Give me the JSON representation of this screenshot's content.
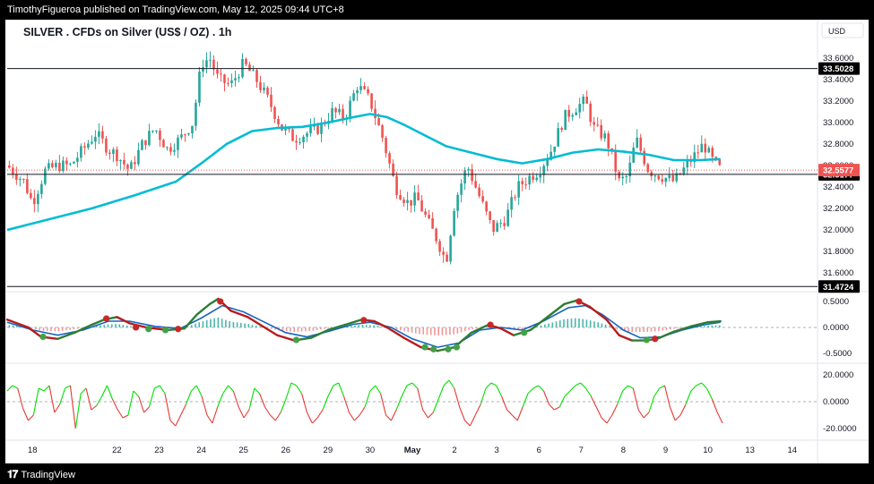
{
  "header": {
    "publish_line": "TimothyFigueroa published on TradingView.com, May 12, 2025 09:44 UTC+8"
  },
  "footer": {
    "brand": "TradingView"
  },
  "colors": {
    "up_candle": "#26a69a",
    "down_candle": "#ef5350",
    "ma_line": "#00bcd4",
    "osc_fast": "#2e7d32",
    "osc_fast_down": "#b71c1c",
    "osc_slow": "#1565c0",
    "rsi_up": "#00e000",
    "rsi_down": "#e53935",
    "price_tag": "#ef5350",
    "hline_tag": "#000000"
  },
  "chart_data": [
    {
      "type": "candlestick",
      "title": "SILVER . CFDs on Silver (US$ / OZ) . 1h",
      "currency": "USD",
      "ylim": [
        31.45,
        33.75
      ],
      "y_ticks": [
        "33.6000",
        "33.4000",
        "33.2000",
        "33.0000",
        "32.8000",
        "32.6000",
        "32.4000",
        "32.2000",
        "32.0000",
        "31.8000",
        "31.6000"
      ],
      "x_ticks": [
        {
          "label": "18",
          "t": 0.6
        },
        {
          "label": "22",
          "t": 2.6
        },
        {
          "label": "23",
          "t": 3.6
        },
        {
          "label": "24",
          "t": 4.6
        },
        {
          "label": "25",
          "t": 5.6
        },
        {
          "label": "26",
          "t": 6.6
        },
        {
          "label": "29",
          "t": 7.6
        },
        {
          "label": "30",
          "t": 8.6
        },
        {
          "label": "May",
          "t": 9.6,
          "bold": true
        },
        {
          "label": "2",
          "t": 10.6
        },
        {
          "label": "3",
          "t": 11.6
        },
        {
          "label": "6",
          "t": 12.6
        },
        {
          "label": "7",
          "t": 13.6
        },
        {
          "label": "8",
          "t": 14.6
        },
        {
          "label": "9",
          "t": 15.6
        },
        {
          "label": "10",
          "t": 16.6
        },
        {
          "label": "13",
          "t": 17.6
        },
        {
          "label": "14",
          "t": 18.6
        }
      ],
      "horizontal_lines": [
        {
          "value": 33.5028,
          "label": "33.5028"
        },
        {
          "value": 32.5177,
          "label": "32.5177"
        },
        {
          "value": 31.4724,
          "label": "31.4724"
        }
      ],
      "last_price": {
        "value": 32.5577,
        "label": "32.5577"
      },
      "price_path": [
        [
          0.0,
          32.6
        ],
        [
          0.4,
          32.45
        ],
        [
          0.6,
          32.25
        ],
        [
          0.9,
          32.55
        ],
        [
          1.2,
          32.6
        ],
        [
          1.5,
          32.6
        ],
        [
          1.8,
          32.75
        ],
        [
          2.1,
          32.9
        ],
        [
          2.4,
          32.75
        ],
        [
          2.6,
          32.7
        ],
        [
          2.9,
          32.55
        ],
        [
          3.2,
          32.8
        ],
        [
          3.5,
          32.95
        ],
        [
          3.8,
          32.75
        ],
        [
          4.1,
          32.85
        ],
        [
          4.4,
          33.0
        ],
        [
          4.6,
          33.55
        ],
        [
          4.8,
          33.6
        ],
        [
          5.0,
          33.4
        ],
        [
          5.3,
          33.35
        ],
        [
          5.6,
          33.55
        ],
        [
          5.9,
          33.4
        ],
        [
          6.2,
          33.2
        ],
        [
          6.5,
          32.95
        ],
        [
          6.8,
          32.85
        ],
        [
          7.1,
          32.9
        ],
        [
          7.4,
          32.95
        ],
        [
          7.7,
          33.1
        ],
        [
          8.0,
          33.05
        ],
        [
          8.3,
          33.35
        ],
        [
          8.6,
          33.2
        ],
        [
          8.9,
          32.85
        ],
        [
          9.2,
          32.4
        ],
        [
          9.5,
          32.25
        ],
        [
          9.7,
          32.3
        ],
        [
          10.0,
          32.05
        ],
        [
          10.2,
          31.9
        ],
        [
          10.4,
          31.7
        ],
        [
          10.6,
          32.25
        ],
        [
          10.9,
          32.6
        ],
        [
          11.2,
          32.3
        ],
        [
          11.5,
          32.0
        ],
        [
          11.8,
          32.1
        ],
        [
          12.1,
          32.4
        ],
        [
          12.4,
          32.5
        ],
        [
          12.6,
          32.55
        ],
        [
          12.9,
          32.75
        ],
        [
          13.2,
          33.05
        ],
        [
          13.5,
          33.15
        ],
        [
          13.7,
          33.2
        ],
        [
          13.9,
          32.95
        ],
        [
          14.2,
          32.85
        ],
        [
          14.5,
          32.45
        ],
        [
          14.7,
          32.5
        ],
        [
          14.9,
          32.85
        ],
        [
          15.2,
          32.55
        ],
        [
          15.5,
          32.5
        ],
        [
          15.8,
          32.45
        ],
        [
          16.1,
          32.6
        ],
        [
          16.3,
          32.7
        ],
        [
          16.5,
          32.8
        ],
        [
          16.7,
          32.65
        ],
        [
          16.9,
          32.56
        ]
      ],
      "moving_average_path": [
        [
          0.0,
          32.0
        ],
        [
          1.0,
          32.1
        ],
        [
          2.0,
          32.2
        ],
        [
          3.0,
          32.32
        ],
        [
          4.0,
          32.45
        ],
        [
          4.6,
          32.62
        ],
        [
          5.2,
          32.8
        ],
        [
          5.8,
          32.92
        ],
        [
          6.4,
          32.95
        ],
        [
          7.0,
          32.96
        ],
        [
          7.6,
          33.0
        ],
        [
          8.2,
          33.05
        ],
        [
          8.6,
          33.08
        ],
        [
          9.0,
          33.05
        ],
        [
          9.4,
          32.98
        ],
        [
          9.8,
          32.9
        ],
        [
          10.4,
          32.78
        ],
        [
          11.0,
          32.72
        ],
        [
          11.6,
          32.66
        ],
        [
          12.2,
          32.62
        ],
        [
          12.8,
          32.66
        ],
        [
          13.4,
          32.72
        ],
        [
          14.0,
          32.75
        ],
        [
          14.6,
          32.73
        ],
        [
          15.2,
          32.7
        ],
        [
          15.8,
          32.65
        ],
        [
          16.4,
          32.65
        ],
        [
          16.9,
          32.66
        ]
      ]
    },
    {
      "type": "oscillator",
      "ylim": [
        -0.62,
        0.62
      ],
      "y_ticks": [
        "0.5000",
        "0.0000",
        "-0.5000"
      ],
      "fast_path": [
        [
          0.0,
          0.15
        ],
        [
          0.5,
          0.0
        ],
        [
          0.8,
          -0.18
        ],
        [
          1.2,
          -0.22
        ],
        [
          1.6,
          -0.1
        ],
        [
          2.0,
          0.05
        ],
        [
          2.3,
          0.15
        ],
        [
          2.6,
          0.2
        ],
        [
          2.9,
          0.08
        ],
        [
          3.3,
          0.0
        ],
        [
          3.8,
          -0.05
        ],
        [
          4.2,
          -0.02
        ],
        [
          4.5,
          0.25
        ],
        [
          4.8,
          0.45
        ],
        [
          5.0,
          0.55
        ],
        [
          5.3,
          0.32
        ],
        [
          5.7,
          0.2
        ],
        [
          6.0,
          0.05
        ],
        [
          6.4,
          -0.15
        ],
        [
          6.8,
          -0.25
        ],
        [
          7.2,
          -0.2
        ],
        [
          7.6,
          -0.05
        ],
        [
          8.0,
          0.05
        ],
        [
          8.4,
          0.15
        ],
        [
          8.7,
          0.12
        ],
        [
          9.0,
          0.0
        ],
        [
          9.4,
          -0.2
        ],
        [
          9.8,
          -0.38
        ],
        [
          10.2,
          -0.45
        ],
        [
          10.6,
          -0.38
        ],
        [
          11.0,
          -0.1
        ],
        [
          11.4,
          0.05
        ],
        [
          11.7,
          -0.02
        ],
        [
          12.0,
          -0.15
        ],
        [
          12.4,
          -0.05
        ],
        [
          12.8,
          0.2
        ],
        [
          13.2,
          0.45
        ],
        [
          13.5,
          0.52
        ],
        [
          13.8,
          0.4
        ],
        [
          14.2,
          0.15
        ],
        [
          14.5,
          -0.15
        ],
        [
          14.8,
          -0.25
        ],
        [
          15.1,
          -0.25
        ],
        [
          15.4,
          -0.22
        ],
        [
          15.8,
          -0.08
        ],
        [
          16.2,
          0.02
        ],
        [
          16.6,
          0.1
        ],
        [
          16.9,
          0.12
        ]
      ],
      "slow_path": [
        [
          0.0,
          0.1
        ],
        [
          0.6,
          -0.05
        ],
        [
          1.2,
          -0.15
        ],
        [
          1.8,
          -0.05
        ],
        [
          2.4,
          0.12
        ],
        [
          2.9,
          0.12
        ],
        [
          3.5,
          0.02
        ],
        [
          4.1,
          -0.02
        ],
        [
          4.6,
          0.18
        ],
        [
          5.1,
          0.42
        ],
        [
          5.6,
          0.3
        ],
        [
          6.1,
          0.1
        ],
        [
          6.6,
          -0.1
        ],
        [
          7.1,
          -0.18
        ],
        [
          7.6,
          -0.08
        ],
        [
          8.2,
          0.06
        ],
        [
          8.6,
          0.1
        ],
        [
          9.1,
          0.0
        ],
        [
          9.6,
          -0.22
        ],
        [
          10.2,
          -0.38
        ],
        [
          10.7,
          -0.3
        ],
        [
          11.2,
          -0.05
        ],
        [
          11.7,
          0.0
        ],
        [
          12.2,
          -0.05
        ],
        [
          12.7,
          0.12
        ],
        [
          13.3,
          0.38
        ],
        [
          13.7,
          0.42
        ],
        [
          14.1,
          0.25
        ],
        [
          14.6,
          -0.05
        ],
        [
          15.0,
          -0.2
        ],
        [
          15.5,
          -0.18
        ],
        [
          16.0,
          -0.05
        ],
        [
          16.5,
          0.05
        ],
        [
          16.9,
          0.1
        ]
      ],
      "cross_markers": [
        {
          "t": 0.85,
          "v": -0.18,
          "kind": "up"
        },
        {
          "t": 2.35,
          "v": 0.17,
          "kind": "down"
        },
        {
          "t": 3.05,
          "v": 0.0,
          "kind": "down"
        },
        {
          "t": 3.35,
          "v": -0.03,
          "kind": "up"
        },
        {
          "t": 3.75,
          "v": -0.05,
          "kind": "up"
        },
        {
          "t": 4.05,
          "v": -0.03,
          "kind": "down"
        },
        {
          "t": 5.05,
          "v": 0.5,
          "kind": "down"
        },
        {
          "t": 6.85,
          "v": -0.24,
          "kind": "up"
        },
        {
          "t": 8.45,
          "v": 0.14,
          "kind": "down"
        },
        {
          "t": 9.9,
          "v": -0.38,
          "kind": "up"
        },
        {
          "t": 10.1,
          "v": -0.42,
          "kind": "up"
        },
        {
          "t": 10.45,
          "v": -0.42,
          "kind": "up"
        },
        {
          "t": 10.65,
          "v": -0.38,
          "kind": "up"
        },
        {
          "t": 11.45,
          "v": 0.05,
          "kind": "down"
        },
        {
          "t": 12.25,
          "v": -0.1,
          "kind": "up"
        },
        {
          "t": 13.55,
          "v": 0.5,
          "kind": "down"
        },
        {
          "t": 15.15,
          "v": -0.24,
          "kind": "up"
        },
        {
          "t": 15.35,
          "v": -0.22,
          "kind": "down"
        }
      ]
    },
    {
      "type": "line",
      "ylim": [
        -26,
        26
      ],
      "y_ticks": [
        "20.0000",
        "0.0000",
        "-20.0000"
      ],
      "values": [
        8,
        12,
        10,
        -5,
        -14,
        -10,
        10,
        8,
        12,
        -8,
        -2,
        10,
        12,
        -20,
        6,
        10,
        -6,
        -3,
        4,
        12,
        2,
        -6,
        -12,
        -10,
        8,
        4,
        -8,
        -4,
        10,
        12,
        6,
        -14,
        -18,
        -10,
        -2,
        8,
        12,
        4,
        -10,
        -16,
        -4,
        6,
        12,
        8,
        -4,
        -12,
        -6,
        10,
        6,
        -4,
        -10,
        -14,
        -8,
        2,
        14,
        12,
        6,
        -8,
        -16,
        -12,
        -6,
        4,
        12,
        14,
        4,
        -8,
        -14,
        -10,
        -4,
        8,
        12,
        6,
        -10,
        -14,
        -6,
        4,
        12,
        14,
        10,
        -6,
        -12,
        -8,
        2,
        12,
        16,
        10,
        -4,
        -14,
        -18,
        -10,
        -2,
        10,
        14,
        12,
        4,
        -6,
        -10,
        -14,
        -4,
        6,
        10,
        12,
        8,
        -2,
        -6,
        -4,
        4,
        8,
        12,
        14,
        10,
        4,
        -4,
        -12,
        -16,
        -10,
        -2,
        8,
        12,
        10,
        -6,
        -12,
        -8,
        4,
        10,
        12,
        -4,
        -14,
        -10,
        -2,
        8,
        12,
        14,
        10,
        2,
        -8,
        -16
      ]
    }
  ]
}
